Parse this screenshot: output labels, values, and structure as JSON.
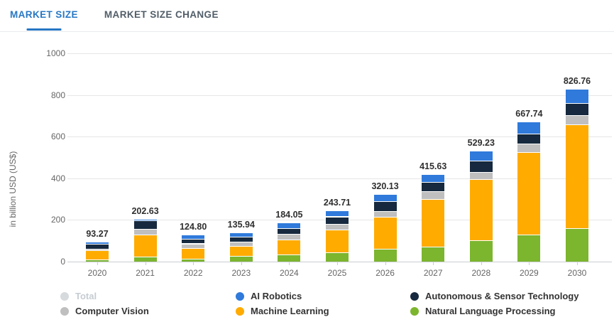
{
  "tabs": [
    {
      "label": "MARKET SIZE",
      "active": true
    },
    {
      "label": "MARKET SIZE CHANGE",
      "active": false
    }
  ],
  "colors": {
    "accent": "#2777c4",
    "ai_robotics": "#2f7adb",
    "autonomous_sensor": "#16293e",
    "computer_vision": "#bfbfbf",
    "machine_learning": "#ffab00",
    "nlp": "#7cb52e",
    "total_disabled": "#d6dadd"
  },
  "chart_data": {
    "type": "bar",
    "stacked": true,
    "title": "",
    "xlabel": "",
    "ylabel": "in billion USD (US$)",
    "ylim": [
      0,
      1000
    ],
    "yticks": [
      0,
      200,
      400,
      600,
      800,
      1000
    ],
    "grid": true,
    "legend_position": "bottom",
    "categories": [
      "2020",
      "2021",
      "2022",
      "2023",
      "2024",
      "2025",
      "2026",
      "2027",
      "2028",
      "2029",
      "2030"
    ],
    "totals": [
      "93.27",
      "202.63",
      "124.80",
      "135.94",
      "184.05",
      "243.71",
      "320.13",
      "415.63",
      "529.23",
      "667.74",
      "826.76"
    ],
    "series": [
      {
        "name": "Natural Language Processing",
        "color": "#7cb52e",
        "values": [
          10,
          23,
          14,
          28,
          33,
          45,
          63,
          70,
          102,
          128,
          160
        ]
      },
      {
        "name": "Machine Learning",
        "color": "#ffab00",
        "values": [
          46,
          106,
          52,
          48,
          74,
          110,
          153,
          229,
          293,
          398,
          500
        ]
      },
      {
        "name": "Computer Vision",
        "color": "#bfbfbf",
        "values": [
          7,
          29,
          21,
          21,
          27,
          27,
          28,
          39,
          34,
          42,
          44
        ]
      },
      {
        "name": "Autonomous & Sensor Technology",
        "color": "#16293e",
        "values": [
          21.27,
          40.63,
          21,
          21.94,
          27.05,
          34.71,
          45.13,
          42.63,
          55.23,
          47.74,
          57.76
        ]
      },
      {
        "name": "AI Robotics",
        "color": "#2f7adb",
        "values": [
          9,
          4,
          16.8,
          17,
          23,
          27,
          31,
          35,
          45,
          52,
          65
        ]
      }
    ],
    "legend_columns": [
      [
        {
          "label": "Total",
          "color": "#d6dadd",
          "disabled": true
        },
        {
          "label": "Computer Vision",
          "color": "#bfbfbf",
          "disabled": false
        }
      ],
      [
        {
          "label": "AI Robotics",
          "color": "#2f7adb",
          "disabled": false
        },
        {
          "label": "Machine Learning",
          "color": "#ffab00",
          "disabled": false
        }
      ],
      [
        {
          "label": "Autonomous & Sensor Technology",
          "color": "#16293e",
          "disabled": false
        },
        {
          "label": "Natural Language Processing",
          "color": "#7cb52e",
          "disabled": false
        }
      ]
    ]
  }
}
